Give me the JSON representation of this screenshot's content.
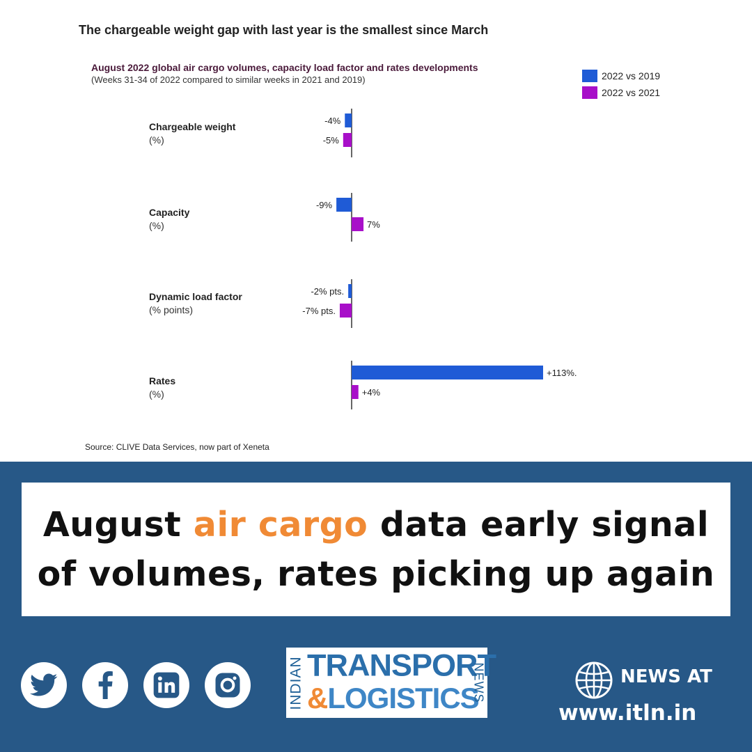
{
  "chart_data": {
    "type": "bar",
    "orientation": "horizontal",
    "title": "The chargeable weight gap with last year is the smallest since March",
    "subtitle": "August 2022 global air cargo volumes, capacity load factor and rates developments",
    "note": "(Weeks 31-34 of 2022 compared to similar weeks in 2021 and 2019)",
    "source": "Source: CLIVE Data Services, now part of Xeneta",
    "legend_position": "top-right",
    "grid": false,
    "categories": [
      {
        "name": "Chargeable weight",
        "unit": "(%)"
      },
      {
        "name": "Capacity",
        "unit": "(%)"
      },
      {
        "name": "Dynamic load factor",
        "unit": "(% points)"
      },
      {
        "name": "Rates",
        "unit": "(%)"
      }
    ],
    "series": [
      {
        "name": "2022 vs 2019",
        "color": "#1f5bd6",
        "values": [
          -4,
          -9,
          -2,
          113
        ],
        "labels": [
          "-4%",
          "-9%",
          "-2% pts.",
          "+113%."
        ]
      },
      {
        "name": "2022 vs 2021",
        "color": "#a80fc9",
        "values": [
          -5,
          7,
          -7,
          4
        ],
        "labels": [
          "-5%",
          "7%",
          "-7% pts.",
          "+4%"
        ]
      }
    ]
  },
  "banner": {
    "headline_before": "August ",
    "headline_highlight": "air cargo",
    "headline_after": " data early signal of volumes, rates picking up again",
    "highlight_color": "#f08a35",
    "background_color": "#275887"
  },
  "social": [
    {
      "icon": "twitter-icon"
    },
    {
      "icon": "facebook-icon"
    },
    {
      "icon": "linkedin-icon"
    },
    {
      "icon": "instagram-icon"
    }
  ],
  "logo": {
    "left": "INDIAN",
    "line1": "TRANSPORT",
    "amp": "&",
    "line2": "LOGISTICS",
    "right": "NEWS"
  },
  "footer": {
    "news_at": "NEWS AT",
    "url": "www.itln.in"
  }
}
